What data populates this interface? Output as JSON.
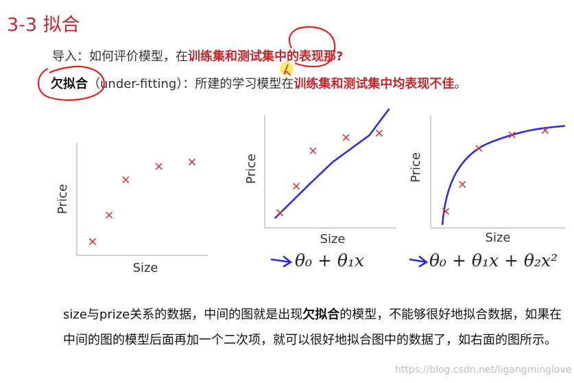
{
  "header": {
    "title": "3-3 拟合"
  },
  "intro": {
    "prefix": "导入：如何评价模型，在",
    "highlight": "训练集和测试集中的表现那?"
  },
  "underfit": {
    "term": "欠拟合",
    "english": "（under-fitting）：所建的学习模型在",
    "highlight": "训练集和测试集中均表现不佳",
    "suffix": "。"
  },
  "plots": [
    {
      "ylabel": "Price",
      "xlabel": "Size",
      "formula": ""
    },
    {
      "ylabel": "Price",
      "xlabel": "Size",
      "formula": "θ₀ + θ₁x"
    },
    {
      "ylabel": "Price",
      "xlabel": "Size",
      "formula": "θ₀ + θ₁x + θ₂x²"
    }
  ],
  "chart_data": [
    {
      "type": "scatter",
      "xlabel": "Size",
      "ylabel": "Price",
      "points": [
        [
          1,
          1
        ],
        [
          1.5,
          2.2
        ],
        [
          2,
          3.8
        ],
        [
          3,
          4.4
        ],
        [
          4,
          4.6
        ]
      ]
    },
    {
      "type": "scatter",
      "xlabel": "Size",
      "ylabel": "Price",
      "points": [
        [
          1,
          1
        ],
        [
          1.5,
          2.2
        ],
        [
          2,
          3.8
        ],
        [
          3,
          4.4
        ],
        [
          4,
          4.6
        ]
      ],
      "fit": "linear"
    },
    {
      "type": "scatter",
      "xlabel": "Size",
      "ylabel": "Price",
      "points": [
        [
          1,
          1
        ],
        [
          1.5,
          2.2
        ],
        [
          2,
          3.8
        ],
        [
          3,
          4.4
        ],
        [
          4,
          4.6
        ]
      ],
      "fit": "quadratic"
    }
  ],
  "paragraph": {
    "p1": "size与prize关系的数据，中间的图就是出现",
    "bold": "欠拟合",
    "p2": "的模型，不能够很好地拟合数据，如果在中间的图的模型后面再加一个二次项，就可以很好地拟合图中的数据了，如右面的图所示。"
  },
  "watermark": "https://blog.csdn.net/ligangminglove",
  "colors": {
    "accent": "#c0282a",
    "fit_line": "#2a2fd8",
    "marker": "#d23a3a"
  }
}
